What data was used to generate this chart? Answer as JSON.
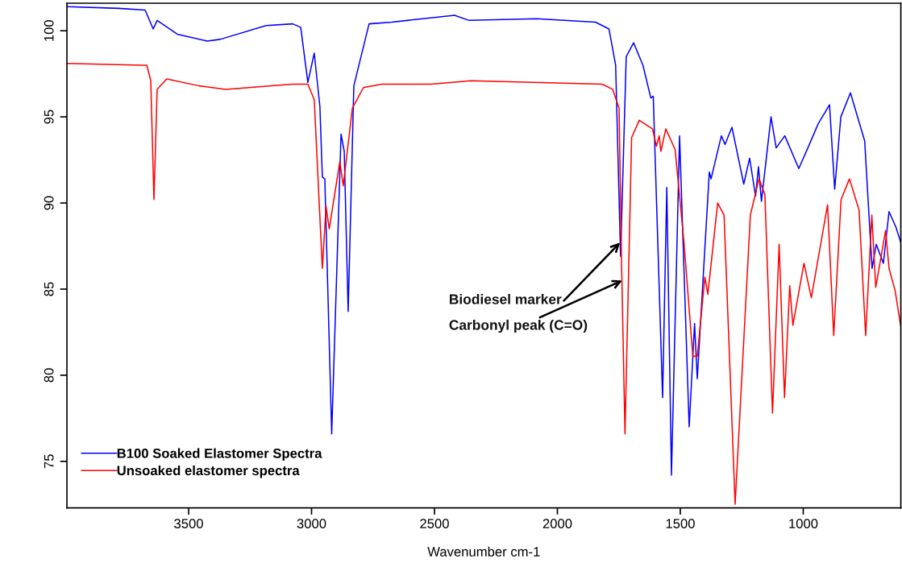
{
  "chart_data": {
    "type": "line",
    "xlabel": "Wavenumber cm-1",
    "xlim": [
      3995,
      603
    ],
    "xticks": [
      3500,
      3000,
      2500,
      2000,
      1500,
      1000
    ],
    "ylim": [
      72.3,
      101.6
    ],
    "yticks": [
      75,
      80,
      85,
      90,
      95,
      100
    ],
    "grid": false,
    "legend": "bottom left",
    "marker": "none",
    "line_style": "solid",
    "series": [
      {
        "name": "B100 Soaked Elastomer Spectra",
        "color": "#0000ff",
        "x": [
          3995,
          3785,
          3677,
          3644,
          3628,
          3546,
          3425,
          3372,
          3185,
          3077,
          3044,
          3015,
          2989,
          2966,
          2956,
          2946,
          2918,
          2880,
          2867,
          2851,
          2828,
          2766,
          2674,
          2418,
          2359,
          2084,
          1845,
          1790,
          1763,
          1743,
          1720,
          1690,
          1652,
          1620,
          1610,
          1572,
          1555,
          1536,
          1503,
          1464,
          1442,
          1431,
          1382,
          1375,
          1333,
          1318,
          1290,
          1242,
          1218,
          1194,
          1182,
          1170,
          1131,
          1110,
          1075,
          1018,
          975,
          939,
          893,
          872,
          847,
          808,
          750,
          720,
          703,
          674,
          651,
          623,
          603
        ],
        "values": [
          101.4,
          101.3,
          101.2,
          100.1,
          100.6,
          99.8,
          99.4,
          99.5,
          100.3,
          100.4,
          100.2,
          97.0,
          98.7,
          95.6,
          91.5,
          91.4,
          76.6,
          94.0,
          93.0,
          83.7,
          96.8,
          100.4,
          100.5,
          100.9,
          100.6,
          100.7,
          100.5,
          100.1,
          98.0,
          86.9,
          98.5,
          99.3,
          98.0,
          96.1,
          96.2,
          78.7,
          90.9,
          74.2,
          93.9,
          77.0,
          83.0,
          79.8,
          91.8,
          91.4,
          93.9,
          93.4,
          94.4,
          91.1,
          92.6,
          90.4,
          92.1,
          90.1,
          95.0,
          93.2,
          93.9,
          92.0,
          93.4,
          94.6,
          95.7,
          90.8,
          95.0,
          96.4,
          93.6,
          86.2,
          87.6,
          86.5,
          89.5,
          88.6,
          87.7
        ]
      },
      {
        "name": "Unsoaked elastomer spectra",
        "color": "#ff0000",
        "x": [
          3995,
          3687,
          3670,
          3654,
          3641,
          3628,
          3589,
          3457,
          3349,
          3077,
          3015,
          2989,
          2956,
          2941,
          2928,
          2885,
          2871,
          2834,
          2789,
          2713,
          2513,
          2352,
          1818,
          1775,
          1749,
          1739,
          1725,
          1698,
          1667,
          1613,
          1597,
          1586,
          1579,
          1559,
          1521,
          1485,
          1449,
          1431,
          1400,
          1388,
          1348,
          1322,
          1277,
          1215,
          1180,
          1156,
          1125,
          1098,
          1076,
          1055,
          1042,
          997,
          967,
          901,
          876,
          846,
          812,
          773,
          746,
          721,
          705,
          665,
          651,
          626,
          604
        ],
        "values": [
          98.1,
          98.0,
          98.0,
          97.1,
          90.2,
          96.6,
          97.2,
          96.8,
          96.6,
          96.9,
          96.9,
          96.0,
          86.2,
          89.8,
          88.5,
          92.4,
          91.0,
          95.5,
          96.7,
          96.9,
          96.9,
          97.1,
          96.9,
          96.6,
          95.5,
          86.5,
          76.6,
          93.8,
          94.8,
          94.3,
          93.3,
          93.9,
          93.0,
          94.3,
          93.1,
          87.7,
          81.1,
          81.1,
          85.7,
          84.7,
          90.0,
          89.3,
          72.5,
          89.3,
          91.4,
          90.5,
          77.8,
          87.6,
          78.7,
          85.2,
          82.9,
          86.5,
          84.5,
          89.9,
          82.3,
          90.2,
          91.4,
          89.6,
          82.3,
          89.3,
          85.1,
          88.4,
          86.2,
          84.9,
          82.9
        ]
      }
    ],
    "annotations": [
      {
        "text": "Biodiesel marker",
        "x": 1745,
        "y": 87.7
      },
      {
        "text": "Carbonyl peak (C=O)",
        "x": 1736,
        "y": 85.5
      }
    ]
  }
}
